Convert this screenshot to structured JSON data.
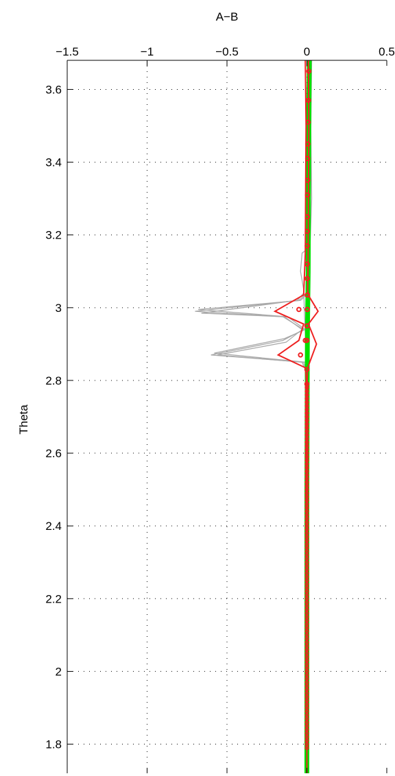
{
  "chart_data": {
    "type": "line",
    "title": "",
    "xlabel": "A−B",
    "ylabel": "Theta",
    "xlim": [
      -1.5,
      0.5
    ],
    "ylim": [
      1.72,
      3.68
    ],
    "x_axis_position": "top",
    "grid": true,
    "grid_style": "dotted",
    "x_ticks": [
      -1.5,
      -1,
      -0.5,
      0,
      0.5
    ],
    "x_tick_labels": [
      "−1.5",
      "−1",
      "−0.5",
      "0",
      "0.5"
    ],
    "y_ticks": [
      1.8,
      2.0,
      2.2,
      2.4,
      2.6,
      2.8,
      3.0,
      3.2,
      3.4,
      3.6
    ],
    "y_tick_labels": [
      "1.8",
      "2",
      "2.2",
      "2.4",
      "2.6",
      "2.8",
      "3",
      "3.2",
      "3.4",
      "3.6"
    ],
    "colors": {
      "grey_lines": "#a9a9a9",
      "band": "#00e000",
      "red": "#ee2222"
    },
    "series": [
      {
        "style": "grey-lines",
        "lines": [
          {
            "x": [
              0.01,
              0.02,
              0.0,
              -0.05,
              -0.7,
              -0.15,
              -0.02,
              -0.15,
              -0.6,
              -0.02,
              0.0,
              0.0,
              0.0
            ],
            "y": [
              3.68,
              3.3,
              3.04,
              3.02,
              2.99,
              2.975,
              2.94,
              2.91,
              2.87,
              2.85,
              2.82,
              2.3,
              1.72
            ]
          },
          {
            "x": [
              0.02,
              0.03,
              0.01,
              -0.04,
              -0.68,
              -0.12,
              -0.01,
              -0.14,
              -0.58,
              -0.01,
              0.0,
              0.0,
              0.0
            ],
            "y": [
              3.68,
              3.3,
              3.04,
              3.02,
              2.995,
              2.975,
              2.94,
              2.915,
              2.875,
              2.85,
              2.82,
              2.3,
              1.72
            ]
          },
          {
            "x": [
              -0.01,
              0.01,
              -0.02,
              -0.06,
              -0.66,
              -0.14,
              -0.03,
              -0.13,
              -0.56,
              -0.03,
              0.0,
              0.0,
              0.0
            ],
            "y": [
              3.68,
              3.3,
              3.04,
              3.02,
              2.985,
              2.975,
              2.94,
              2.905,
              2.87,
              2.85,
              2.82,
              2.3,
              1.72
            ]
          },
          {
            "x": [
              0.03,
              0.02,
              0.0,
              -0.03,
              -0.04,
              -0.02,
              0.0
            ],
            "y": [
              3.68,
              3.3,
              3.16,
              3.15,
              3.1,
              3.05,
              2.8
            ]
          }
        ]
      },
      {
        "style": "green-band",
        "x": [
          0.015,
          0.012,
          0.01,
          0.008,
          0.005,
          0.003,
          0.002,
          0.0,
          0.0,
          0.0
        ],
        "y": [
          3.68,
          3.5,
          3.3,
          3.1,
          3.0,
          2.9,
          2.8,
          2.5,
          2.0,
          1.72
        ]
      },
      {
        "style": "red-envelope",
        "lines": [
          {
            "x": [
              0.01,
              0.012,
              0.01,
              0.008,
              0.005,
              0.008,
              0.07,
              0.01,
              0.06,
              0.005,
              0.002,
              0.0,
              0.0
            ],
            "y": [
              3.68,
              3.5,
              3.3,
              3.15,
              3.05,
              3.035,
              2.99,
              2.955,
              2.9,
              2.835,
              2.8,
              2.3,
              1.72
            ]
          },
          {
            "x": [
              -0.01,
              -0.005,
              -0.008,
              -0.01,
              -0.02,
              -0.2,
              -0.02,
              -0.05,
              -0.18,
              -0.01,
              -0.004,
              0.0,
              0.0
            ],
            "y": [
              3.68,
              3.5,
              3.3,
              3.15,
              3.035,
              2.99,
              2.955,
              2.91,
              2.87,
              2.835,
              2.8,
              2.3,
              1.72
            ]
          }
        ]
      },
      {
        "style": "red-circles",
        "x": [
          0.012,
          0.01,
          0.008,
          0.006,
          0.005,
          0.005,
          0.004,
          0.003,
          0.003,
          0.002,
          0.002,
          0.002,
          0.002,
          0.002,
          0.003,
          0.003,
          0.002,
          -0.05,
          0.0,
          -0.01,
          0.0,
          -0.04,
          0.0,
          0.0
        ],
        "y": [
          3.65,
          3.57,
          3.51,
          3.45,
          3.41,
          3.35,
          3.31,
          3.25,
          3.21,
          3.17,
          3.12,
          3.08,
          3.035,
          2.995,
          3.035,
          2.995,
          2.95,
          2.995,
          2.95,
          2.91,
          2.91,
          2.87,
          2.83,
          2.79
        ]
      },
      {
        "style": "red-dots-dense",
        "x": [
          0,
          0,
          0,
          0,
          0,
          0,
          0,
          0,
          0,
          0,
          0,
          0,
          0,
          0,
          0,
          0,
          0,
          0,
          0,
          0,
          0,
          0,
          0,
          0,
          0,
          0,
          0,
          0,
          0,
          0,
          0,
          0,
          0,
          0,
          0,
          0,
          0,
          0,
          0,
          0,
          0,
          0,
          0,
          0,
          0,
          0,
          0,
          0,
          0,
          0,
          0,
          0,
          0,
          0,
          0,
          0,
          0,
          0,
          0,
          0,
          0,
          0,
          0,
          0,
          0,
          0,
          0,
          0,
          0,
          0,
          0,
          0,
          0,
          0,
          0,
          0,
          0,
          0,
          0,
          0,
          0,
          0,
          0,
          0,
          0,
          0,
          0,
          0,
          0,
          0,
          0,
          0,
          0,
          0,
          0,
          0,
          0,
          0,
          0,
          0
        ],
        "y": [
          2.78,
          2.77,
          2.76,
          2.75,
          2.74,
          2.73,
          2.72,
          2.71,
          2.7,
          2.69,
          2.68,
          2.67,
          2.66,
          2.65,
          2.64,
          2.63,
          2.62,
          2.61,
          2.6,
          2.59,
          2.58,
          2.57,
          2.56,
          2.55,
          2.54,
          2.53,
          2.52,
          2.51,
          2.5,
          2.49,
          2.48,
          2.47,
          2.46,
          2.45,
          2.44,
          2.43,
          2.42,
          2.41,
          2.4,
          2.39,
          2.38,
          2.37,
          2.36,
          2.35,
          2.34,
          2.33,
          2.32,
          2.31,
          2.3,
          2.29,
          2.28,
          2.27,
          2.26,
          2.25,
          2.24,
          2.23,
          2.22,
          2.21,
          2.2,
          2.19,
          2.18,
          2.17,
          2.16,
          2.15,
          2.14,
          2.13,
          2.12,
          2.11,
          2.1,
          2.09,
          2.08,
          2.07,
          2.06,
          2.05,
          2.04,
          2.03,
          2.02,
          2.01,
          2.0,
          1.99,
          1.98,
          1.97,
          1.96,
          1.95,
          1.94,
          1.93,
          1.92,
          1.91,
          1.9,
          1.89,
          1.88,
          1.87,
          1.86,
          1.85,
          1.84,
          1.83,
          1.82,
          1.81,
          1.8,
          1.79
        ]
      }
    ]
  }
}
